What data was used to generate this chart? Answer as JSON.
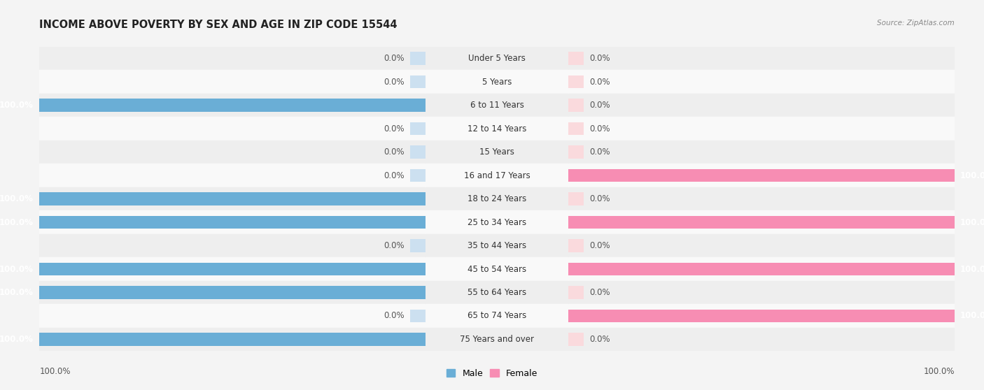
{
  "title": "INCOME ABOVE POVERTY BY SEX AND AGE IN ZIP CODE 15544",
  "source": "Source: ZipAtlas.com",
  "categories": [
    "Under 5 Years",
    "5 Years",
    "6 to 11 Years",
    "12 to 14 Years",
    "15 Years",
    "16 and 17 Years",
    "18 to 24 Years",
    "25 to 34 Years",
    "35 to 44 Years",
    "45 to 54 Years",
    "55 to 64 Years",
    "65 to 74 Years",
    "75 Years and over"
  ],
  "male_values": [
    0.0,
    0.0,
    100.0,
    0.0,
    0.0,
    0.0,
    100.0,
    100.0,
    0.0,
    100.0,
    100.0,
    0.0,
    100.0
  ],
  "female_values": [
    0.0,
    0.0,
    0.0,
    0.0,
    0.0,
    100.0,
    0.0,
    100.0,
    0.0,
    100.0,
    0.0,
    100.0,
    0.0
  ],
  "male_color": "#6aaed6",
  "female_color": "#f78db3",
  "male_color_light": "#cce0f0",
  "female_color_light": "#fadadd",
  "bar_height": 0.55,
  "bg_color": "#f4f4f4",
  "row_even_color": "#eeeeee",
  "row_odd_color": "#f9f9f9",
  "legend_male": "Male",
  "legend_female": "Female",
  "label_fontsize": 8.5,
  "title_fontsize": 10.5,
  "source_fontsize": 7.5
}
